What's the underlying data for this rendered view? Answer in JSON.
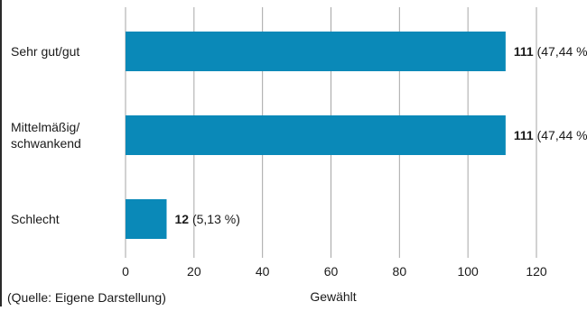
{
  "caption_top": "",
  "source_note": "(Quelle: Eigene Darstellung)",
  "colors": {
    "bar": "#0a89b8",
    "grid": "#a6a6a6",
    "text": "#1a1a1a"
  },
  "chart_data": {
    "type": "bar",
    "orientation": "horizontal",
    "title": "",
    "xlabel": "Gewählt",
    "ylabel": "",
    "xlim": [
      0,
      120
    ],
    "x_ticks": [
      0,
      20,
      40,
      60,
      80,
      100,
      120
    ],
    "grid": "vertical",
    "categories": [
      {
        "label_lines": [
          "Sehr gut/gut"
        ],
        "value": 111,
        "percent_label": "(47,44 %)"
      },
      {
        "label_lines": [
          "Mittelmäßig/",
          "schwankend"
        ],
        "value": 111,
        "percent_label": "(47,44 %)"
      },
      {
        "label_lines": [
          "Schlecht"
        ],
        "value": 12,
        "percent_label": "(5,13 %)"
      }
    ]
  }
}
